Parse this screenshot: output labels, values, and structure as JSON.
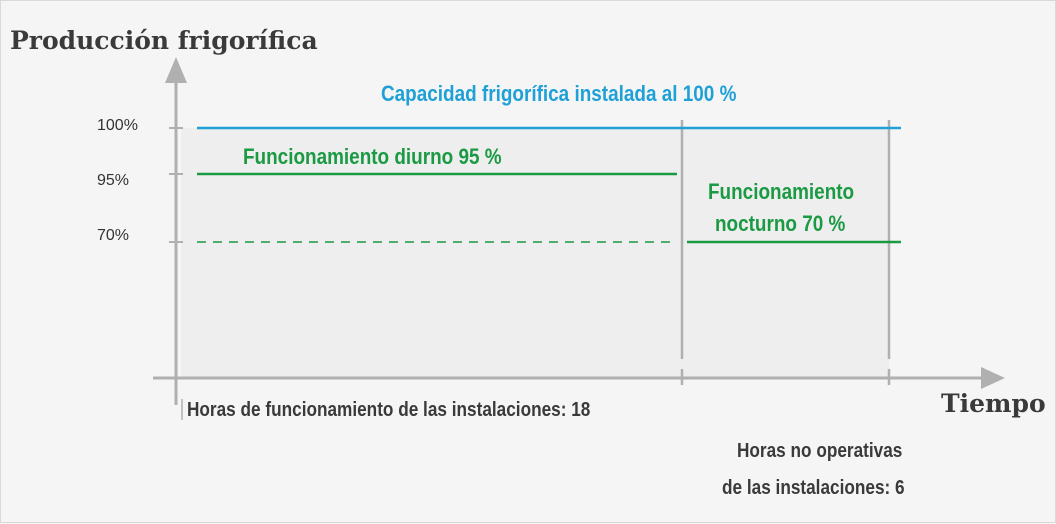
{
  "axes": {
    "y_title": "Producción frigorífica",
    "x_title": "Tiempo",
    "y_ticks": [
      "100%",
      "95%",
      "70%"
    ]
  },
  "labels": {
    "capacity": "Capacidad frigorífica instalada al 100 %",
    "day_operation": "Funcionamiento diurno 95 %",
    "night_operation_line1": "Funcionamiento",
    "night_operation_line2": "nocturno 70 %",
    "operating_hours": "Horas de funcionamiento de las instalaciones: 18",
    "non_operating_hours_line1": "Horas no operativas",
    "non_operating_hours_line2": "de las instalaciones: 6"
  },
  "colors": {
    "capacity": "#1fa0d6",
    "operation": "#1b9a44",
    "axis": "#b0b0b0",
    "text": "#3a3a3a"
  },
  "values": {
    "capacity_percent": 100,
    "day_percent": 95,
    "night_percent": 70,
    "operating_hours": 18,
    "non_operating_hours": 6
  }
}
